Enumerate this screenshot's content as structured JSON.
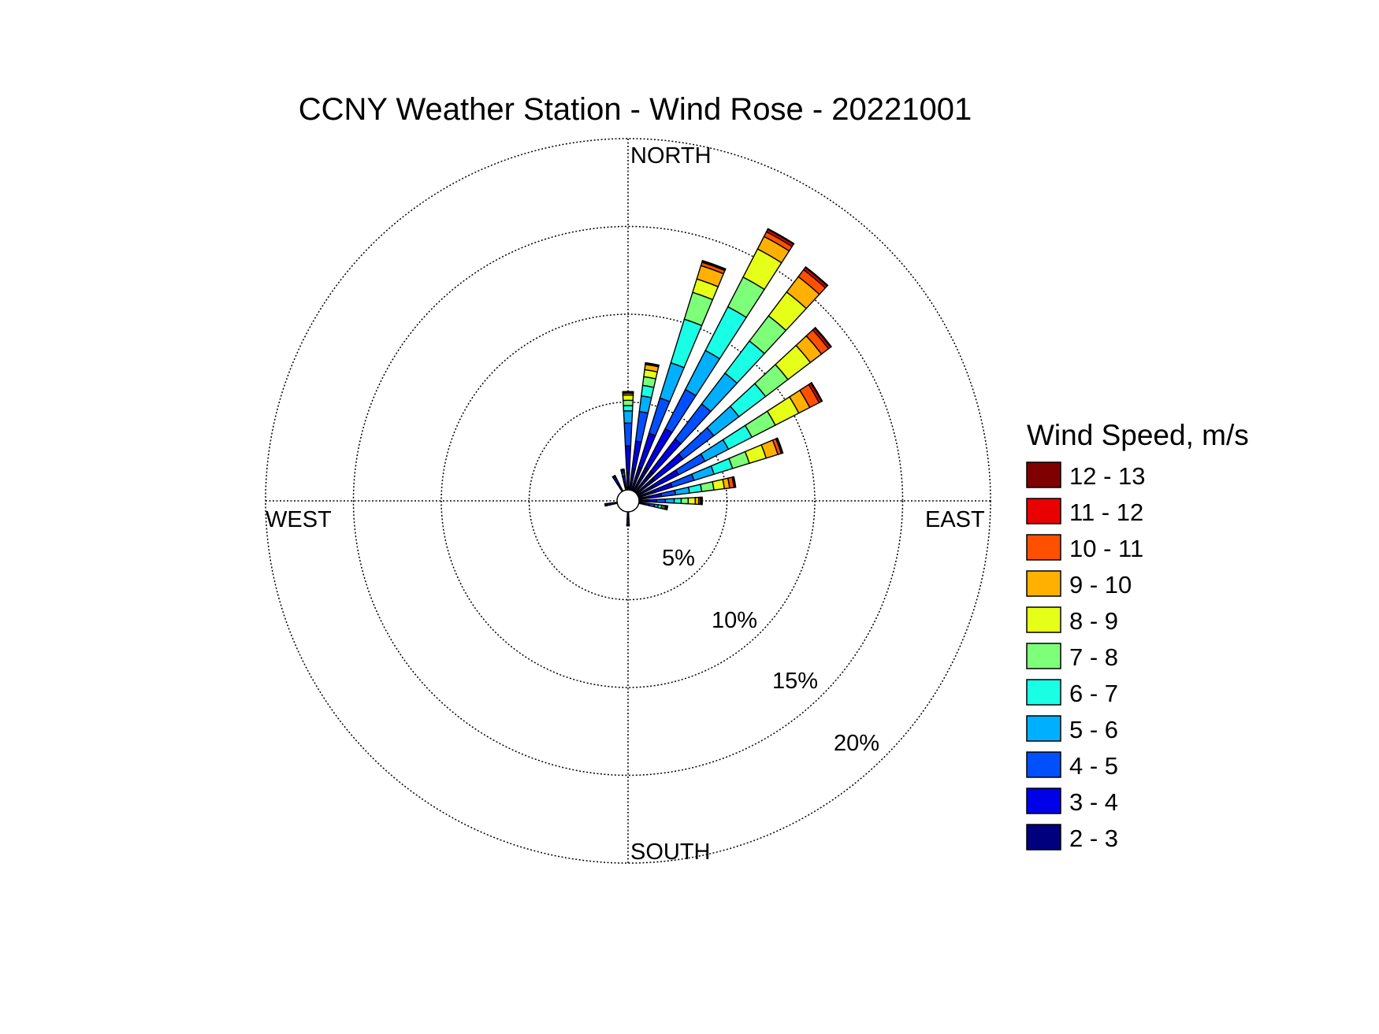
{
  "chart_data": {
    "type": "windrose",
    "title": "CCNY Weather Station - Wind Rose - 20221001",
    "directions": {
      "north": "NORTH",
      "east": "EAST",
      "south": "SOUTH",
      "west": "WEST"
    },
    "radial_unit": "%",
    "radial_rings": [
      5,
      10,
      15,
      20
    ],
    "radial_labels": [
      "5%",
      "10%",
      "15%",
      "20%"
    ],
    "radial_max": 20,
    "legend_title": "Wind Speed, m/s",
    "bins": [
      {
        "label": "2 - 3",
        "color": "#00007f"
      },
      {
        "label": "3 - 4",
        "color": "#0000e9"
      },
      {
        "label": "4 - 5",
        "color": "#0050ff"
      },
      {
        "label": "5 - 6",
        "color": "#00b0ff"
      },
      {
        "label": "6 - 7",
        "color": "#19ffe6"
      },
      {
        "label": "7 - 8",
        "color": "#7dff7a"
      },
      {
        "label": "8 - 9",
        "color": "#e6ff19"
      },
      {
        "label": "9 - 10",
        "color": "#ffb000"
      },
      {
        "label": "10 - 11",
        "color": "#ff5000"
      },
      {
        "label": "11 - 12",
        "color": "#e90000"
      },
      {
        "label": "12 - 13",
        "color": "#7f0000"
      }
    ],
    "bar_width_deg": 5.6,
    "petals": [
      {
        "direction_deg": 0,
        "cumulative": [
          1.0,
          2.5,
          3.8,
          4.5,
          4.8,
          5.1,
          5.4,
          5.5,
          5.55,
          5.57,
          5.6
        ]
      },
      {
        "direction_deg": 10,
        "cumulative": [
          1.2,
          2.8,
          4.5,
          5.4,
          6.0,
          6.5,
          6.9,
          7.2,
          7.25,
          7.27,
          7.3
        ]
      },
      {
        "direction_deg": 20,
        "cumulative": [
          1.4,
          3.4,
          5.5,
          7.6,
          10.2,
          11.8,
          12.6,
          13.4,
          13.6,
          13.65,
          13.7
        ]
      },
      {
        "direction_deg": 30,
        "cumulative": [
          1.5,
          4.0,
          6.5,
          9.0,
          11.8,
          13.7,
          15.5,
          16.3,
          16.6,
          16.75,
          16.8
        ]
      },
      {
        "direction_deg": 40,
        "cumulative": [
          1.5,
          3.8,
          6.3,
          8.5,
          10.8,
          12.6,
          14.3,
          15.4,
          15.9,
          16.05,
          16.1
        ]
      },
      {
        "direction_deg": 50,
        "cumulative": [
          1.3,
          3.3,
          5.5,
          7.3,
          9.2,
          10.8,
          12.4,
          13.2,
          13.7,
          13.85,
          13.9
        ]
      },
      {
        "direction_deg": 60,
        "cumulative": [
          1.0,
          2.6,
          4.3,
          5.8,
          7.3,
          8.8,
          10.3,
          11.0,
          11.6,
          11.75,
          11.8
        ]
      },
      {
        "direction_deg": 70,
        "cumulative": [
          0.8,
          2.0,
          3.3,
          4.5,
          5.6,
          6.6,
          7.6,
          8.3,
          8.5,
          8.55,
          8.6
        ]
      },
      {
        "direction_deg": 80,
        "cumulative": [
          0.6,
          1.3,
          2.1,
          2.9,
          3.6,
          4.3,
          4.9,
          5.2,
          5.45,
          5.5,
          5.55
        ]
      },
      {
        "direction_deg": 90,
        "cumulative": [
          0.5,
          1.0,
          1.5,
          2.0,
          2.4,
          2.8,
          3.2,
          3.4,
          3.5,
          3.55,
          3.6
        ]
      },
      {
        "direction_deg": 100,
        "cumulative": [
          0.3,
          0.6,
          0.9,
          1.1,
          1.3,
          1.4,
          1.5,
          1.55,
          1.6,
          1.62,
          1.65
        ]
      },
      {
        "direction_deg": 180,
        "cumulative": [
          0.4,
          0.6,
          0.7,
          0.75,
          0.8,
          0.8,
          0.8,
          0.8,
          0.8,
          0.8,
          0.8
        ]
      },
      {
        "direction_deg": 260,
        "cumulative": [
          0.4,
          0.6,
          0.65,
          0.7,
          0.7,
          0.7,
          0.7,
          0.7,
          0.7,
          0.7,
          0.7
        ]
      },
      {
        "direction_deg": 330,
        "cumulative": [
          0.5,
          0.8,
          0.9,
          0.95,
          1.0,
          1.0,
          1.0,
          1.0,
          1.0,
          1.0,
          1.0
        ]
      },
      {
        "direction_deg": 350,
        "cumulative": [
          0.5,
          0.8,
          1.0,
          1.1,
          1.15,
          1.2,
          1.2,
          1.2,
          1.2,
          1.2,
          1.2
        ]
      }
    ]
  }
}
